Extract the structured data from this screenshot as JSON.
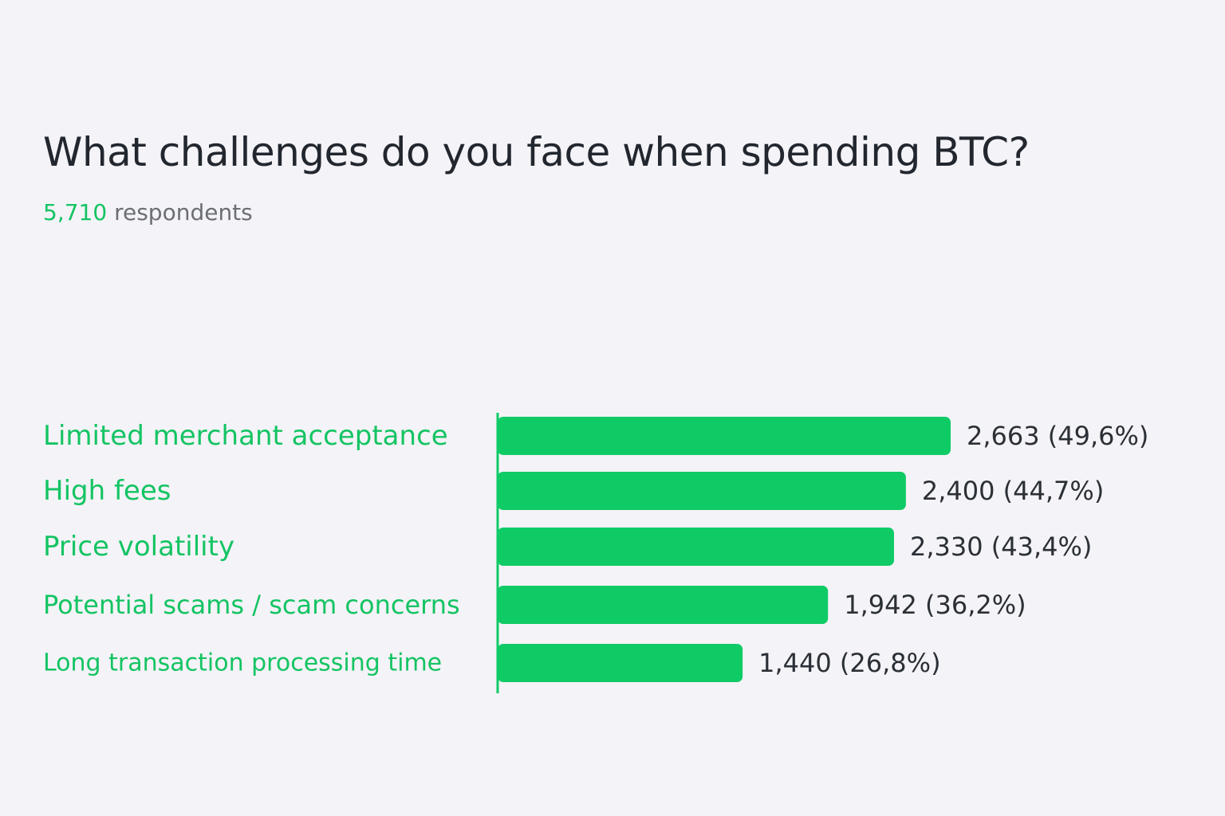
{
  "title": "What challenges do you face when spending BTC?",
  "respondents": {
    "count": "5,710",
    "label": "respondents"
  },
  "colors": {
    "bar": "#0fcb66",
    "category_text": "#14c463",
    "value_text": "#2b2f36",
    "background": "#f4f3f7"
  },
  "chart_data": {
    "type": "bar",
    "orientation": "horizontal",
    "categories": [
      "Limited merchant acceptance",
      "High fees",
      "Price volatility",
      "Potential scams / scam concerns",
      "Long transaction processing time"
    ],
    "values": [
      2663,
      2400,
      2330,
      1942,
      1440
    ],
    "value_labels": [
      "2,663 (49,6%)",
      "2,400 (44,7%)",
      "2,330 (43,4%)",
      "1,942 (36,2%)",
      "1,440 (26,8%)"
    ],
    "title": "What challenges do you face when spending BTC?",
    "xlabel": "",
    "ylabel": "",
    "xlim": [
      0,
      2663
    ],
    "grid": false,
    "legend": "none"
  }
}
